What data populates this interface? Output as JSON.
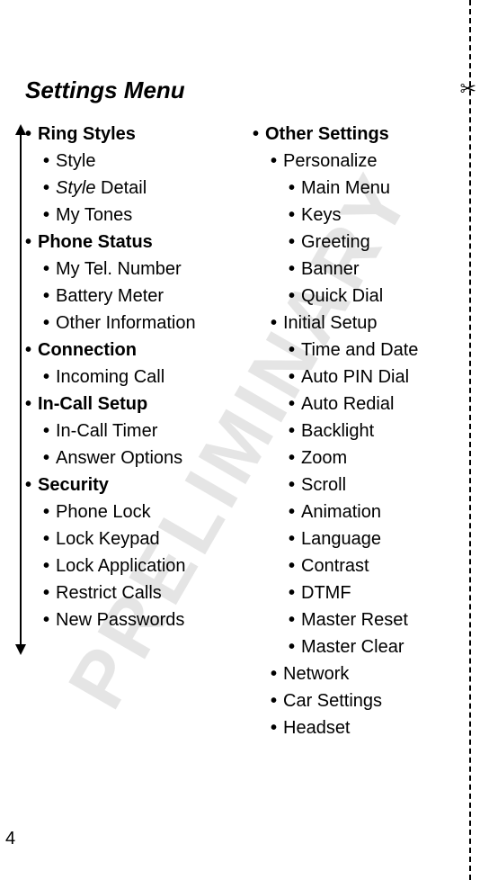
{
  "watermark": "PRELIMINARY",
  "title": "Settings Menu",
  "page_number": "4",
  "scissors": "✂",
  "left": [
    {
      "label": "Ring Styles",
      "type": "section"
    },
    {
      "label": "Style",
      "type": "item"
    },
    {
      "label_prefix": "Style",
      "label_suffix": " Detail",
      "type": "item",
      "prefix_italic": true
    },
    {
      "label": "My Tones",
      "type": "item"
    },
    {
      "label": "Phone Status",
      "type": "section"
    },
    {
      "label": "My Tel. Number",
      "type": "item"
    },
    {
      "label": "Battery Meter",
      "type": "item"
    },
    {
      "label": "Other Information",
      "type": "item"
    },
    {
      "label": "Connection",
      "type": "section"
    },
    {
      "label": "Incoming Call",
      "type": "item"
    },
    {
      "label": "In-Call Setup",
      "type": "section"
    },
    {
      "label": "In-Call Timer",
      "type": "item"
    },
    {
      "label": "Answer Options",
      "type": "item"
    },
    {
      "label": "Security",
      "type": "section"
    },
    {
      "label": "Phone Lock",
      "type": "item"
    },
    {
      "label": "Lock Keypad",
      "type": "item"
    },
    {
      "label": "Lock Application",
      "type": "item"
    },
    {
      "label": "Restrict Calls",
      "type": "item"
    },
    {
      "label": "New Passwords",
      "type": "item"
    }
  ],
  "right": [
    {
      "label": "Other Settings",
      "type": "section"
    },
    {
      "label": "Personalize",
      "type": "item"
    },
    {
      "label": "Main Menu",
      "type": "subitem"
    },
    {
      "label": "Keys",
      "type": "subitem"
    },
    {
      "label": "Greeting",
      "type": "subitem"
    },
    {
      "label": "Banner",
      "type": "subitem"
    },
    {
      "label": "Quick Dial",
      "type": "subitem"
    },
    {
      "label": "Initial Setup",
      "type": "item"
    },
    {
      "label": "Time and Date",
      "type": "subitem"
    },
    {
      "label": "Auto PIN Dial",
      "type": "subitem"
    },
    {
      "label": "Auto Redial",
      "type": "subitem"
    },
    {
      "label": "Backlight",
      "type": "subitem"
    },
    {
      "label": "Zoom",
      "type": "subitem"
    },
    {
      "label": "Scroll",
      "type": "subitem"
    },
    {
      "label": "Animation",
      "type": "subitem"
    },
    {
      "label": "Language",
      "type": "subitem"
    },
    {
      "label": "Contrast",
      "type": "subitem"
    },
    {
      "label": "DTMF",
      "type": "subitem"
    },
    {
      "label": "Master Reset",
      "type": "subitem"
    },
    {
      "label": "Master Clear",
      "type": "subitem"
    },
    {
      "label": "Network",
      "type": "item"
    },
    {
      "label": "Car Settings",
      "type": "item"
    },
    {
      "label": "Headset",
      "type": "item"
    }
  ]
}
